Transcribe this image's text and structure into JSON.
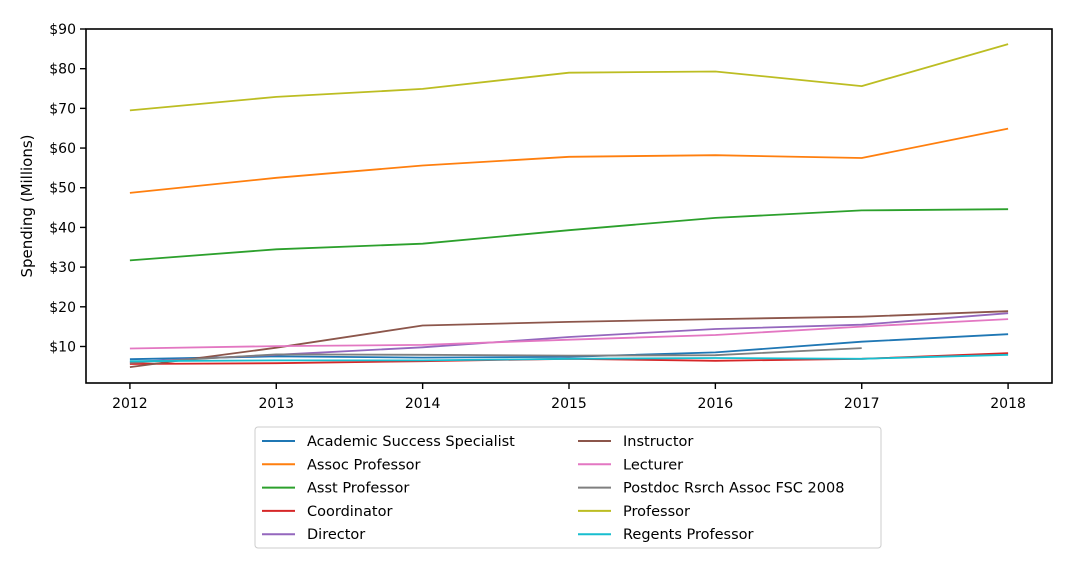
{
  "chart_data": {
    "type": "line",
    "title": "",
    "xlabel": "",
    "ylabel": "Spending (Millions)",
    "x": [
      2012,
      2013,
      2014,
      2015,
      2016,
      2017,
      2018
    ],
    "xlim": [
      2011.7,
      2018.3
    ],
    "ylim": [
      0.8,
      90
    ],
    "y_ticks": [
      10,
      20,
      30,
      40,
      50,
      60,
      70,
      80,
      90
    ],
    "y_tick_labels": [
      "$10",
      "$20",
      "$30",
      "$40",
      "$50",
      "$60",
      "$70",
      "$80",
      "$90"
    ],
    "x_tick_labels": [
      "2012",
      "2013",
      "2014",
      "2015",
      "2016",
      "2017",
      "2018"
    ],
    "grid": false,
    "legend_position": "bottom-center",
    "series": [
      {
        "name": "Academic Success Specialist",
        "color": "#1f77b4",
        "values": [
          6.8,
          7.5,
          7.2,
          7.4,
          8.5,
          11.2,
          13.1
        ]
      },
      {
        "name": "Assoc Professor",
        "color": "#ff7f0e",
        "values": [
          48.7,
          52.5,
          55.6,
          57.8,
          58.2,
          57.5,
          64.9
        ]
      },
      {
        "name": "Asst Professor",
        "color": "#2ca02c",
        "values": [
          31.7,
          34.5,
          35.9,
          39.3,
          42.4,
          44.3,
          44.6
        ]
      },
      {
        "name": "Coordinator",
        "color": "#d62728",
        "values": [
          5.6,
          5.8,
          6.3,
          6.9,
          6.4,
          6.9,
          8.3
        ]
      },
      {
        "name": "Director",
        "color": "#9467bd",
        "values": [
          6.1,
          7.9,
          9.8,
          12.4,
          14.4,
          15.5,
          18.4
        ]
      },
      {
        "name": "Instructor",
        "color": "#8c564b",
        "values": [
          4.8,
          9.7,
          15.3,
          16.2,
          16.9,
          17.5,
          18.9
        ]
      },
      {
        "name": "Lecturer",
        "color": "#e377c2",
        "values": [
          9.5,
          10.1,
          10.4,
          11.7,
          12.9,
          15.0,
          16.9
        ]
      },
      {
        "name": "Postdoc Rsrch Assoc FSC 2008",
        "color": "#7f7f7f",
        "values": [
          5.9,
          8.0,
          7.9,
          7.7,
          7.8,
          9.6,
          null
        ]
      },
      {
        "name": "Professor",
        "color": "#bcbd22",
        "values": [
          69.5,
          72.9,
          74.9,
          79.0,
          79.3,
          75.6,
          86.2
        ]
      },
      {
        "name": "Regents Professor",
        "color": "#17becf",
        "values": [
          6.3,
          6.5,
          6.5,
          6.9,
          7.1,
          6.9,
          7.9
        ]
      }
    ]
  }
}
